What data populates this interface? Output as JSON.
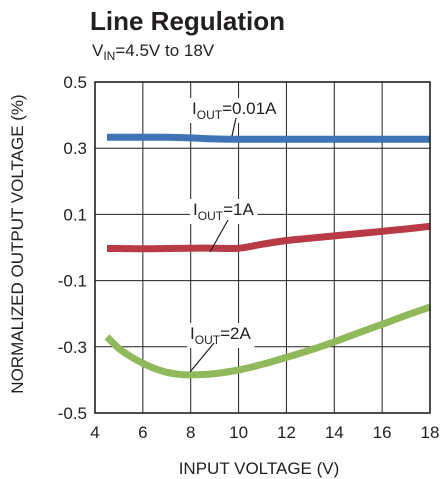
{
  "chart_data": {
    "type": "line",
    "title": "Line Regulation",
    "subtitle": {
      "prefix": "V",
      "sub": "IN",
      "suffix": "=4.5V to 18V"
    },
    "xlabel": "INPUT VOLTAGE (V)",
    "ylabel": "NORMALIZED OUTPUT VOLTAGE (%)",
    "xlim": [
      4,
      18
    ],
    "ylim": [
      -0.5,
      0.5
    ],
    "xticks": [
      4,
      6,
      8,
      10,
      12,
      14,
      16,
      18
    ],
    "yticks": [
      0.5,
      0.3,
      0.1,
      -0.1,
      -0.3,
      -0.5
    ],
    "ytick_labels": [
      "0.5",
      "0.3",
      "0.1",
      "-0.1",
      "-0.3",
      "-0.5"
    ],
    "grid": true,
    "series": [
      {
        "name": "IOUT=0.01A",
        "label_parts": {
          "prefix": "I",
          "sub": "OUT",
          "suffix": "=0.01A"
        },
        "color": "#3e73b6",
        "x": [
          4.5,
          5,
          6,
          7,
          8,
          9,
          10,
          11,
          12,
          13,
          14,
          15,
          16,
          17,
          18
        ],
        "y": [
          0.333,
          0.333,
          0.333,
          0.333,
          0.331,
          0.328,
          0.327,
          0.327,
          0.327,
          0.327,
          0.327,
          0.327,
          0.327,
          0.327,
          0.327
        ]
      },
      {
        "name": "IOUT=1A",
        "label_parts": {
          "prefix": "I",
          "sub": "OUT",
          "suffix": "=1A"
        },
        "color": "#b83a44",
        "x": [
          4.5,
          5,
          6,
          7,
          8,
          9,
          10,
          11,
          12,
          13,
          14,
          15,
          16,
          17,
          18
        ],
        "y": [
          -0.003,
          -0.003,
          -0.004,
          -0.003,
          -0.002,
          -0.002,
          -0.002,
          0.01,
          0.021,
          0.028,
          0.035,
          0.042,
          0.049,
          0.056,
          0.064
        ]
      },
      {
        "name": "IOUT=2A",
        "label_parts": {
          "prefix": "I",
          "sub": "OUT",
          "suffix": "=2A"
        },
        "color": "#8fb95a",
        "x": [
          4.5,
          5,
          5.5,
          6,
          6.5,
          7,
          7.5,
          8,
          9,
          10,
          11,
          12,
          13,
          14,
          15,
          16,
          17,
          18
        ],
        "y": [
          -0.27,
          -0.305,
          -0.33,
          -0.35,
          -0.366,
          -0.377,
          -0.383,
          -0.385,
          -0.381,
          -0.37,
          -0.353,
          -0.332,
          -0.31,
          -0.285,
          -0.258,
          -0.232,
          -0.205,
          -0.18
        ]
      }
    ]
  }
}
